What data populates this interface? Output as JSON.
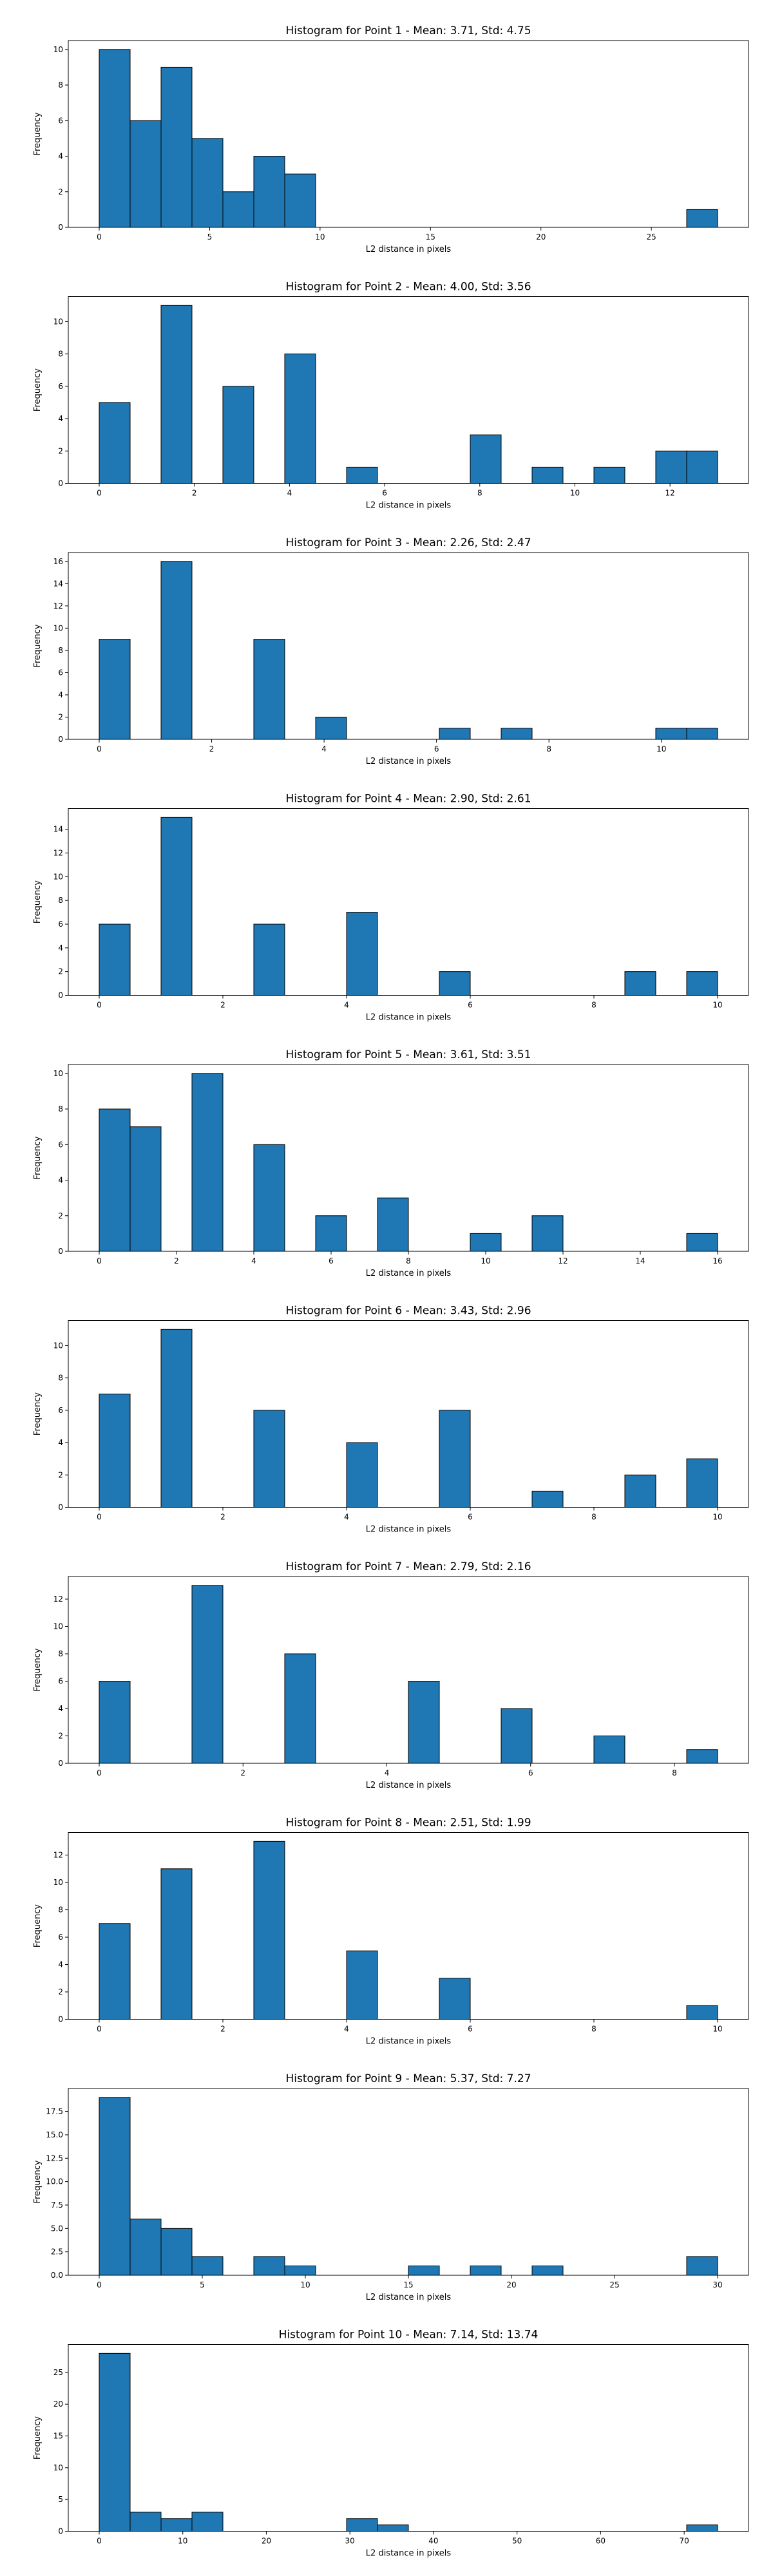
{
  "colors": {
    "bar_fill": "#1f77b4",
    "bar_edge": "#000000",
    "axes": "#000000",
    "background": "#ffffff"
  },
  "chart_data": [
    {
      "type": "bar",
      "title": "Histogram for Point 1 - Mean: 3.71, Std: 4.75",
      "xlabel": "L2 distance in pixels",
      "ylabel": "Frequency",
      "xlim": [
        -1.4,
        29.4
      ],
      "ylim": [
        0,
        10.5
      ],
      "xticks": [
        0,
        5,
        10,
        15,
        20,
        25
      ],
      "xtick_labels": [
        "0",
        "5",
        "10",
        "15",
        "20",
        "25"
      ],
      "yticks": [
        0,
        2,
        4,
        6,
        8,
        10
      ],
      "ytick_labels": [
        "0",
        "2",
        "4",
        "6",
        "8",
        "10"
      ],
      "bin_edges": [
        0,
        1.4,
        2.8,
        4.2,
        5.6,
        7.0,
        8.4,
        9.8,
        11.2,
        12.6,
        14.0,
        15.4,
        16.8,
        18.2,
        19.6,
        21.0,
        22.4,
        23.8,
        25.2,
        26.6,
        28.0
      ],
      "counts": [
        10,
        6,
        9,
        5,
        2,
        4,
        3,
        0,
        0,
        0,
        0,
        0,
        0,
        0,
        0,
        0,
        0,
        0,
        0,
        1
      ],
      "grid": false
    },
    {
      "type": "bar",
      "title": "Histogram for Point 2 - Mean: 4.00, Std: 3.56",
      "xlabel": "L2 distance in pixels",
      "ylabel": "Frequency",
      "xlim": [
        -0.65,
        13.65
      ],
      "ylim": [
        0,
        11.55
      ],
      "xticks": [
        0,
        2,
        4,
        6,
        8,
        10,
        12
      ],
      "xtick_labels": [
        "0",
        "2",
        "4",
        "6",
        "8",
        "10",
        "12"
      ],
      "yticks": [
        0,
        2,
        4,
        6,
        8,
        10
      ],
      "ytick_labels": [
        "0",
        "2",
        "4",
        "6",
        "8",
        "10"
      ],
      "bin_edges": [
        0,
        0.65,
        1.3,
        1.95,
        2.6,
        3.25,
        3.9,
        4.55,
        5.2,
        5.85,
        6.5,
        7.15,
        7.8,
        8.45,
        9.1,
        9.75,
        10.4,
        11.05,
        11.7,
        12.35,
        13.0
      ],
      "counts": [
        5,
        0,
        11,
        0,
        6,
        0,
        8,
        0,
        1,
        0,
        0,
        0,
        3,
        0,
        1,
        0,
        1,
        0,
        2,
        2
      ],
      "grid": false
    },
    {
      "type": "bar",
      "title": "Histogram for Point 3 - Mean: 2.26, Std: 2.47",
      "xlabel": "L2 distance in pixels",
      "ylabel": "Frequency",
      "xlim": [
        -0.55,
        11.55
      ],
      "ylim": [
        0,
        16.8
      ],
      "xticks": [
        0,
        2,
        4,
        6,
        8,
        10
      ],
      "xtick_labels": [
        "0",
        "2",
        "4",
        "6",
        "8",
        "10"
      ],
      "yticks": [
        0,
        2,
        4,
        6,
        8,
        10,
        12,
        14,
        16
      ],
      "ytick_labels": [
        "0",
        "2",
        "4",
        "6",
        "8",
        "10",
        "12",
        "14",
        "16"
      ],
      "bin_edges": [
        0,
        0.55,
        1.1,
        1.65,
        2.2,
        2.75,
        3.3,
        3.85,
        4.4,
        4.95,
        5.5,
        6.05,
        6.6,
        7.15,
        7.7,
        8.25,
        8.8,
        9.35,
        9.9,
        10.45,
        11.0
      ],
      "counts": [
        9,
        0,
        16,
        0,
        0,
        9,
        0,
        2,
        0,
        0,
        0,
        1,
        0,
        1,
        0,
        0,
        0,
        0,
        1,
        1
      ],
      "grid": false
    },
    {
      "type": "bar",
      "title": "Histogram for Point 4 - Mean: 2.90, Std: 2.61",
      "xlabel": "L2 distance in pixels",
      "ylabel": "Frequency",
      "xlim": [
        -0.5,
        10.5
      ],
      "ylim": [
        0,
        15.75
      ],
      "xticks": [
        0,
        2,
        4,
        6,
        8,
        10
      ],
      "xtick_labels": [
        "0",
        "2",
        "4",
        "6",
        "8",
        "10"
      ],
      "yticks": [
        0,
        2,
        4,
        6,
        8,
        10,
        12,
        14
      ],
      "ytick_labels": [
        "0",
        "2",
        "4",
        "6",
        "8",
        "10",
        "12",
        "14"
      ],
      "bin_edges": [
        0,
        0.5,
        1.0,
        1.5,
        2.0,
        2.5,
        3.0,
        3.5,
        4.0,
        4.5,
        5.0,
        5.5,
        6.0,
        6.5,
        7.0,
        7.5,
        8.0,
        8.5,
        9.0,
        9.5,
        10.0
      ],
      "counts": [
        6,
        0,
        15,
        0,
        0,
        6,
        0,
        0,
        7,
        0,
        0,
        2,
        0,
        0,
        0,
        0,
        0,
        2,
        0,
        2
      ],
      "grid": false
    },
    {
      "type": "bar",
      "title": "Histogram for Point 5 - Mean: 3.61, Std: 3.51",
      "xlabel": "L2 distance in pixels",
      "ylabel": "Frequency",
      "xlim": [
        -0.8,
        16.8
      ],
      "ylim": [
        0,
        10.5
      ],
      "xticks": [
        0,
        2,
        4,
        6,
        8,
        10,
        12,
        14,
        16
      ],
      "xtick_labels": [
        "0",
        "2",
        "4",
        "6",
        "8",
        "10",
        "12",
        "14",
        "16"
      ],
      "yticks": [
        0,
        2,
        4,
        6,
        8,
        10
      ],
      "ytick_labels": [
        "0",
        "2",
        "4",
        "6",
        "8",
        "10"
      ],
      "bin_edges": [
        0,
        0.8,
        1.6,
        2.4,
        3.2,
        4.0,
        4.8,
        5.6,
        6.4,
        7.2,
        8.0,
        8.8,
        9.6,
        10.4,
        11.2,
        12.0,
        12.8,
        13.6,
        14.4,
        15.2,
        16.0
      ],
      "counts": [
        8,
        7,
        0,
        10,
        0,
        6,
        0,
        2,
        0,
        3,
        0,
        0,
        1,
        0,
        2,
        0,
        0,
        0,
        0,
        1
      ],
      "grid": false
    },
    {
      "type": "bar",
      "title": "Histogram for Point 6 - Mean: 3.43, Std: 2.96",
      "xlabel": "L2 distance in pixels",
      "ylabel": "Frequency",
      "xlim": [
        -0.5,
        10.5
      ],
      "ylim": [
        0,
        11.55
      ],
      "xticks": [
        0,
        2,
        4,
        6,
        8,
        10
      ],
      "xtick_labels": [
        "0",
        "2",
        "4",
        "6",
        "8",
        "10"
      ],
      "yticks": [
        0,
        2,
        4,
        6,
        8,
        10
      ],
      "ytick_labels": [
        "0",
        "2",
        "4",
        "6",
        "8",
        "10"
      ],
      "bin_edges": [
        0,
        0.5,
        1.0,
        1.5,
        2.0,
        2.5,
        3.0,
        3.5,
        4.0,
        4.5,
        5.0,
        5.5,
        6.0,
        6.5,
        7.0,
        7.5,
        8.0,
        8.5,
        9.0,
        9.5,
        10.0
      ],
      "counts": [
        7,
        0,
        11,
        0,
        0,
        6,
        0,
        0,
        4,
        0,
        0,
        6,
        0,
        0,
        1,
        0,
        0,
        2,
        0,
        3
      ],
      "grid": false
    },
    {
      "type": "bar",
      "title": "Histogram for Point 7 - Mean: 2.79, Std: 2.16",
      "xlabel": "L2 distance in pixels",
      "ylabel": "Frequency",
      "xlim": [
        -0.43,
        9.03
      ],
      "ylim": [
        0,
        13.65
      ],
      "xticks": [
        0,
        2,
        4,
        6,
        8
      ],
      "xtick_labels": [
        "0",
        "2",
        "4",
        "6",
        "8"
      ],
      "yticks": [
        0,
        2,
        4,
        6,
        8,
        10,
        12
      ],
      "ytick_labels": [
        "0",
        "2",
        "4",
        "6",
        "8",
        "10",
        "12"
      ],
      "bin_edges": [
        0,
        0.43,
        0.86,
        1.29,
        1.72,
        2.15,
        2.58,
        3.01,
        3.44,
        3.87,
        4.3,
        4.73,
        5.16,
        5.59,
        6.02,
        6.45,
        6.88,
        7.31,
        7.74,
        8.17,
        8.6
      ],
      "counts": [
        6,
        0,
        0,
        13,
        0,
        0,
        8,
        0,
        0,
        0,
        6,
        0,
        0,
        4,
        0,
        0,
        2,
        0,
        0,
        1
      ],
      "grid": false
    },
    {
      "type": "bar",
      "title": "Histogram for Point 8 - Mean: 2.51, Std: 1.99",
      "xlabel": "L2 distance in pixels",
      "ylabel": "Frequency",
      "xlim": [
        -0.5,
        10.5
      ],
      "ylim": [
        0,
        13.65
      ],
      "xticks": [
        0,
        2,
        4,
        6,
        8,
        10
      ],
      "xtick_labels": [
        "0",
        "2",
        "4",
        "6",
        "8",
        "10"
      ],
      "yticks": [
        0,
        2,
        4,
        6,
        8,
        10,
        12
      ],
      "ytick_labels": [
        "0",
        "2",
        "4",
        "6",
        "8",
        "10",
        "12"
      ],
      "bin_edges": [
        0,
        0.5,
        1.0,
        1.5,
        2.0,
        2.5,
        3.0,
        3.5,
        4.0,
        4.5,
        5.0,
        5.5,
        6.0,
        6.5,
        7.0,
        7.5,
        8.0,
        8.5,
        9.0,
        9.5,
        10.0
      ],
      "counts": [
        7,
        0,
        11,
        0,
        0,
        13,
        0,
        0,
        5,
        0,
        0,
        3,
        0,
        0,
        0,
        0,
        0,
        0,
        0,
        1
      ],
      "grid": false
    },
    {
      "type": "bar",
      "title": "Histogram for Point 9 - Mean: 5.37, Std: 7.27",
      "xlabel": "L2 distance in pixels",
      "ylabel": "Frequency",
      "xlim": [
        -1.5,
        31.5
      ],
      "ylim": [
        0,
        19.95
      ],
      "xticks": [
        0,
        5,
        10,
        15,
        20,
        25,
        30
      ],
      "xtick_labels": [
        "0",
        "5",
        "10",
        "15",
        "20",
        "25",
        "30"
      ],
      "yticks": [
        0,
        2.5,
        5.0,
        7.5,
        10.0,
        12.5,
        15.0,
        17.5
      ],
      "ytick_labels": [
        "0.0",
        "2.5",
        "5.0",
        "7.5",
        "10.0",
        "12.5",
        "15.0",
        "17.5"
      ],
      "bin_edges": [
        0,
        1.5,
        3.0,
        4.5,
        6.0,
        7.5,
        9.0,
        10.5,
        12.0,
        13.5,
        15.0,
        16.5,
        18.0,
        19.5,
        21.0,
        22.5,
        24.0,
        25.5,
        27.0,
        28.5,
        30.0
      ],
      "counts": [
        19,
        6,
        5,
        2,
        0,
        2,
        1,
        0,
        0,
        0,
        1,
        0,
        1,
        0,
        1,
        0,
        0,
        0,
        0,
        2
      ],
      "grid": false
    },
    {
      "type": "bar",
      "title": "Histogram for Point 10 - Mean: 7.14, Std: 13.74",
      "xlabel": "L2 distance in pixels",
      "ylabel": "Frequency",
      "xlim": [
        -3.7,
        77.7
      ],
      "ylim": [
        0,
        29.4
      ],
      "xticks": [
        0,
        10,
        20,
        30,
        40,
        50,
        60,
        70
      ],
      "xtick_labels": [
        "0",
        "10",
        "20",
        "30",
        "40",
        "50",
        "60",
        "70"
      ],
      "yticks": [
        0,
        5,
        10,
        15,
        20,
        25
      ],
      "ytick_labels": [
        "0",
        "5",
        "10",
        "15",
        "20",
        "25"
      ],
      "bin_edges": [
        0,
        3.7,
        7.4,
        11.1,
        14.8,
        18.5,
        22.2,
        25.9,
        29.6,
        33.3,
        37.0,
        40.7,
        44.4,
        48.1,
        51.8,
        55.5,
        59.2,
        62.9,
        66.6,
        70.3,
        74.0
      ],
      "counts": [
        28,
        3,
        2,
        3,
        0,
        0,
        0,
        0,
        2,
        1,
        0,
        0,
        0,
        0,
        0,
        0,
        0,
        0,
        0,
        1
      ],
      "grid": false
    }
  ]
}
